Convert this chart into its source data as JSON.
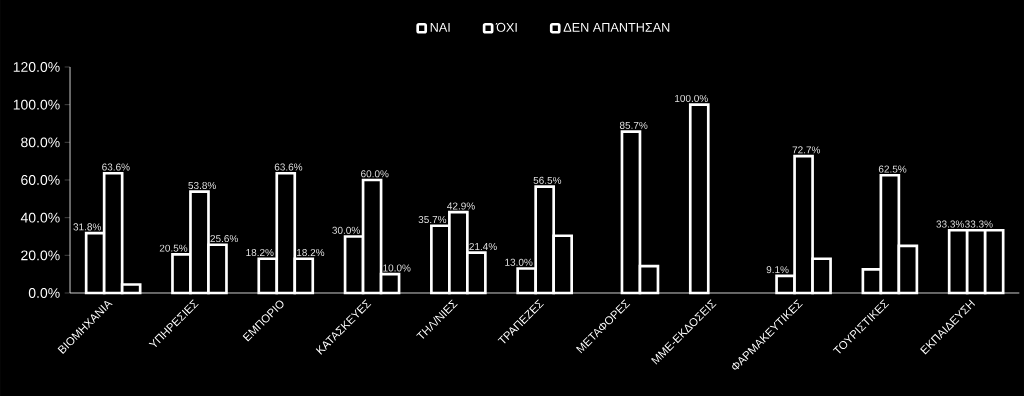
{
  "chart_data": {
    "type": "bar",
    "categories": [
      "ΒΙΟΜΗΧΑΝΙΑ",
      "ΥΠΗΡΕΣΙΕΣ",
      "ΕΜΠΟΡΙΟ",
      "ΚΑΤΑΣΚΕΥΕΣ",
      "ΤΗΛ/ΝΙΕΣ",
      "ΤΡΑΠΕΖΕΣ",
      "ΜΕΤΑΦΟΡΕΣ",
      "ΜΜΕ-ΕΚΔΟΣΕΙΣ",
      "ΦΑΡΜΑΚΕΥΤΙΚΕΣ",
      "ΤΟΥΡΙΣΤΙΚΕΣ",
      "ΕΚΠΑΙΔΕΥΣΗ"
    ],
    "series": [
      {
        "name": "ΝΑΙ",
        "color": "#ffffff",
        "values": [
          31.8,
          20.5,
          18.2,
          30.0,
          35.7,
          13.0,
          null,
          100.0,
          9.1,
          12.5,
          33.3
        ],
        "value_labels": [
          "31.8%",
          "20.5%",
          "18.2%",
          "30.0%",
          "35.7%",
          "13.0%",
          null,
          "100.0%",
          "9.1%",
          null,
          "33.3%"
        ]
      },
      {
        "name": "ΌΧΙ",
        "color": "#ffffff",
        "values": [
          63.6,
          53.8,
          63.6,
          60.0,
          42.9,
          56.5,
          85.7,
          null,
          72.7,
          62.5,
          33.3
        ],
        "value_labels": [
          "63.6%",
          "53.8%",
          "63.6%",
          "60.0%",
          "42.9%",
          "56.5%",
          "85.7%",
          null,
          "72.7%",
          "62.5%",
          "33.3%"
        ]
      },
      {
        "name": "ΔΕΝ ΑΠΑΝΤΗΣΑΝ",
        "color": "#ffffff",
        "values": [
          4.5,
          25.6,
          18.2,
          10.0,
          21.4,
          30.4,
          14.3,
          null,
          18.2,
          25.0,
          33.3
        ],
        "value_labels": [
          null,
          "25.6%",
          "18.2%",
          "10.0%",
          "21.4%",
          null,
          null,
          null,
          null,
          null,
          null
        ]
      }
    ],
    "ylim": [
      0,
      120
    ],
    "yticks": [
      {
        "value": 0,
        "label": "0.0%"
      },
      {
        "value": 20,
        "label": "20.0%"
      },
      {
        "value": 40,
        "label": "40.0%"
      },
      {
        "value": 60,
        "label": "60.0%"
      },
      {
        "value": 80,
        "label": "80.0%"
      },
      {
        "value": 100,
        "label": "100.0%"
      },
      {
        "value": 120,
        "label": "120.0%"
      }
    ],
    "grid": false,
    "legend": "top"
  }
}
